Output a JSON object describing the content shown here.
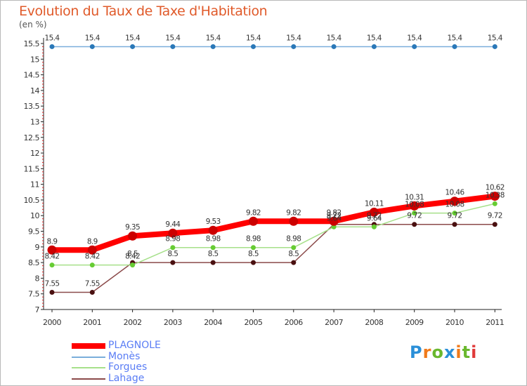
{
  "chart_data": {
    "type": "line",
    "title": "Evolution du Taux de Taxe d'Habitation",
    "ylabel": "(en %)",
    "xlabel": "",
    "ylim": [
      7,
      15.5
    ],
    "y_ticks": [
      "7",
      "7.5",
      "8",
      "8.5",
      "9",
      "9.5",
      "10",
      "10.5",
      "11",
      "11.5",
      "12",
      "12.5",
      "13",
      "13.5",
      "14",
      "14.5",
      "15",
      "15.5"
    ],
    "categories": [
      "2000",
      "2001",
      "2002",
      "2003",
      "2004",
      "2005",
      "2006",
      "2007",
      "2008",
      "2009",
      "2010",
      "2011"
    ],
    "series": [
      {
        "name": "PLAGNOLE",
        "color": "#ff0000",
        "marker": "#cc0000",
        "values": [
          8.9,
          8.9,
          9.35,
          9.44,
          9.53,
          9.82,
          9.82,
          9.82,
          10.11,
          10.31,
          10.46,
          10.62
        ],
        "labels": [
          "8.9",
          "8.9",
          "9.35",
          "9.44",
          "9.53",
          "9.82",
          "9.82",
          "9.82",
          "10.11",
          "10.31",
          "10.46",
          "10.62"
        ]
      },
      {
        "name": "Monès",
        "color": "#7aaedb",
        "marker": "#2a78b8",
        "values": [
          15.4,
          15.4,
          15.4,
          15.4,
          15.4,
          15.4,
          15.4,
          15.4,
          15.4,
          15.4,
          15.4,
          15.4
        ],
        "labels": [
          "15.4",
          "15.4",
          "15.4",
          "15.4",
          "15.4",
          "15.4",
          "15.4",
          "15.4",
          "15.4",
          "15.4",
          "15.4",
          "15.4"
        ]
      },
      {
        "name": "Forgues",
        "color": "#a6e08a",
        "marker": "#66cc33",
        "values": [
          8.42,
          8.42,
          8.42,
          8.98,
          8.98,
          8.98,
          8.98,
          9.64,
          9.64,
          10.08,
          10.08,
          10.38
        ],
        "labels": [
          "8.42",
          "8.42",
          "8.42",
          "8.98",
          "8.98",
          "8.98",
          "8.98",
          "9.64",
          "9.64",
          "10.08",
          "10.08",
          "10.38"
        ]
      },
      {
        "name": "Lahage",
        "color": "#8b4a4a",
        "marker": "#4a1010",
        "values": [
          7.55,
          7.55,
          8.5,
          8.5,
          8.5,
          8.5,
          8.5,
          9.72,
          9.72,
          9.72,
          9.72,
          9.72
        ],
        "labels": [
          "7.55",
          "7.55",
          "8.5",
          "8.5",
          "8.5",
          "8.5",
          "8.5",
          "9.72",
          "9.72",
          "9.72",
          "9.72",
          "9.72"
        ]
      }
    ]
  },
  "logo": {
    "letters": [
      "P",
      "r",
      "o",
      "x",
      "i",
      "t",
      "i"
    ],
    "colors": [
      "#2a8fd8",
      "#f07a1a",
      "#6ab82e",
      "#2a8fd8",
      "#f07a1a",
      "#6ab82e",
      "#e03a3a"
    ]
  }
}
